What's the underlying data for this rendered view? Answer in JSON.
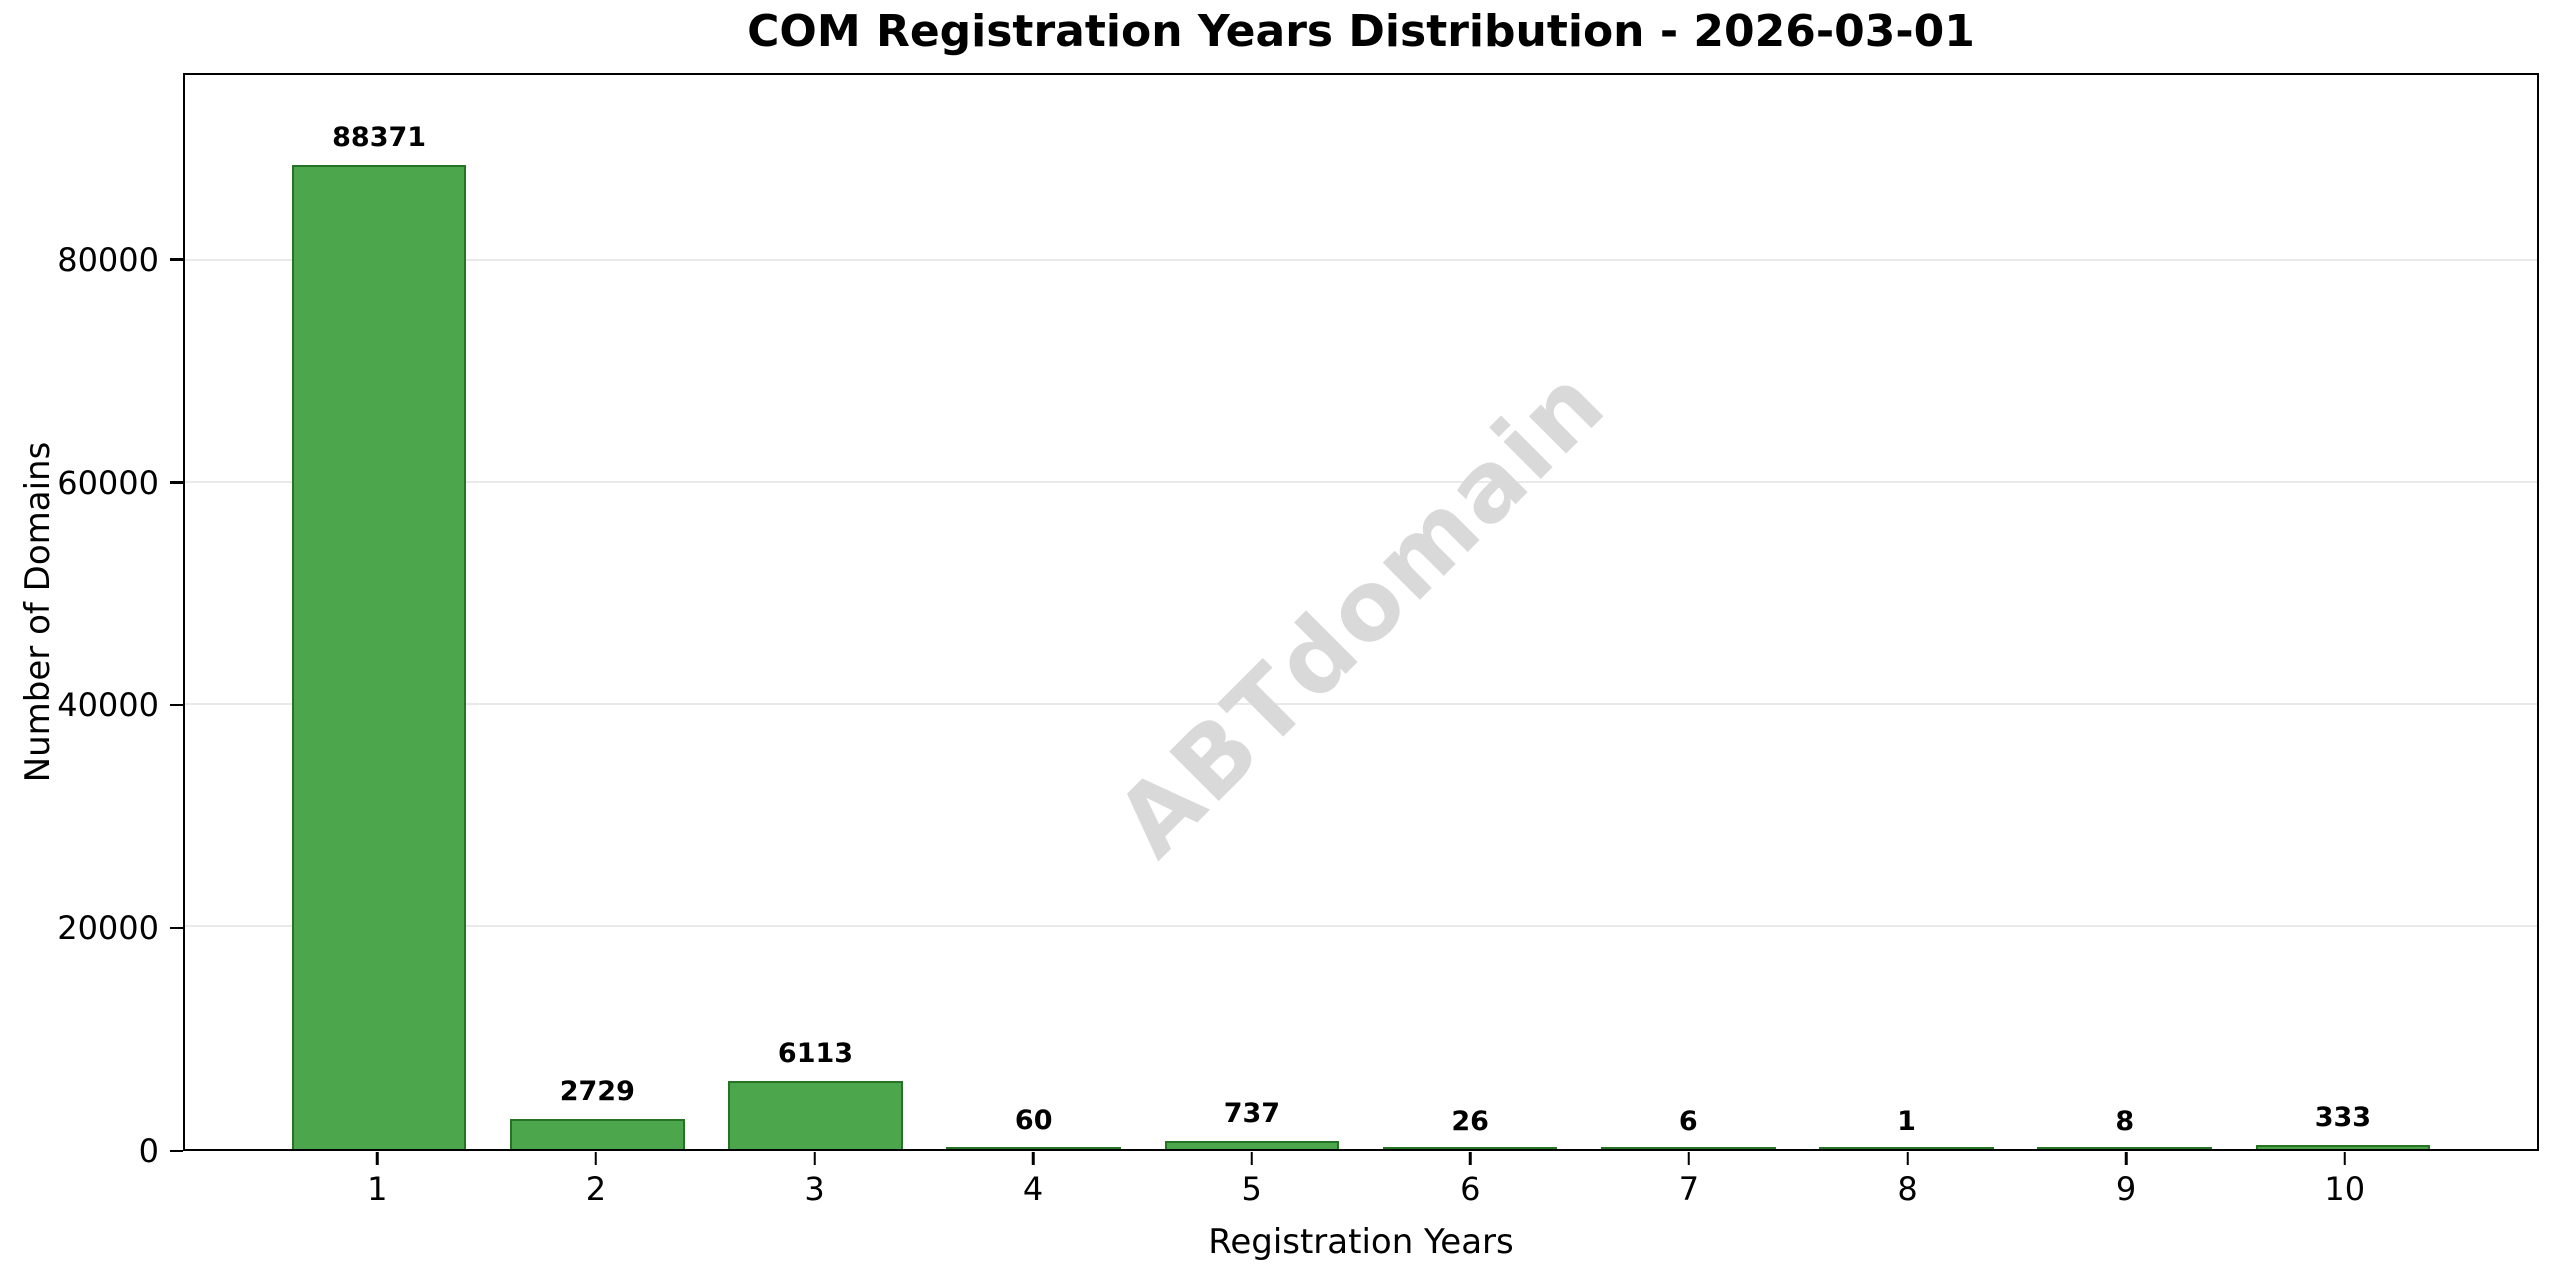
{
  "chart_data": {
    "type": "bar",
    "title": "COM Registration Years Distribution - 2026-03-01",
    "xlabel": "Registration Years",
    "ylabel": "Number of Domains",
    "categories": [
      "1",
      "2",
      "3",
      "4",
      "5",
      "6",
      "7",
      "8",
      "9",
      "10"
    ],
    "values": [
      88371,
      2729,
      6113,
      60,
      737,
      26,
      6,
      1,
      8,
      333
    ],
    "value_labels": [
      "88371",
      "2729",
      "6113",
      "60",
      "737",
      "26",
      "6",
      "1",
      "8",
      "333"
    ],
    "yticks": [
      0,
      20000,
      40000,
      60000,
      80000
    ],
    "ytick_labels": [
      "0",
      "20000",
      "40000",
      "60000",
      "80000"
    ],
    "ylim": [
      0,
      96780
    ],
    "grid": "horizontal",
    "legend": "none",
    "watermark": "ABTdomain",
    "colors": {
      "bar_fill": "#4ca64c",
      "bar_edge": "#267326",
      "gridline": "#e9e9e9",
      "spine": "#000000",
      "watermark": "#d9d9d9",
      "background": "#ffffff",
      "text": "#000000"
    }
  }
}
